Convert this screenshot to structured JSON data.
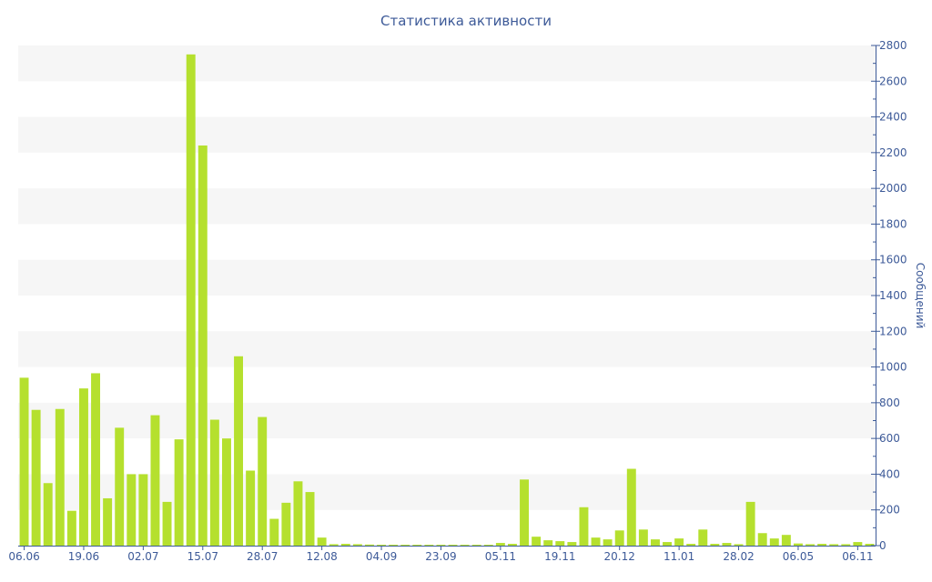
{
  "chart_data": {
    "type": "bar",
    "title": "Статистика активности",
    "ylabel": "Сообщений",
    "xlabel": "",
    "ylim": [
      0,
      2800
    ],
    "y_ticks": [
      0,
      200,
      400,
      600,
      800,
      1000,
      1200,
      1400,
      1600,
      1800,
      2000,
      2200,
      2400,
      2600,
      2800
    ],
    "y_axis_side": "right",
    "grid": "horizontal alternating bands",
    "legend": "none",
    "bar_color": "#b5e02e",
    "axis_color": "#3d5a98",
    "band_color": "#f6f6f6",
    "x_tick_labels": [
      {
        "label": "06.06",
        "index": 0
      },
      {
        "label": "19.06",
        "index": 5
      },
      {
        "label": "02.07",
        "index": 10
      },
      {
        "label": "15.07",
        "index": 15
      },
      {
        "label": "28.07",
        "index": 20
      },
      {
        "label": "12.08",
        "index": 25
      },
      {
        "label": "04.09",
        "index": 30
      },
      {
        "label": "23.09",
        "index": 35
      },
      {
        "label": "05.11",
        "index": 40
      },
      {
        "label": "19.11",
        "index": 45
      },
      {
        "label": "20.12",
        "index": 50
      },
      {
        "label": "11.01",
        "index": 55
      },
      {
        "label": "28.02",
        "index": 60
      },
      {
        "label": "06.05",
        "index": 65
      },
      {
        "label": "06.11",
        "index": 70
      }
    ],
    "values": [
      940,
      760,
      350,
      765,
      195,
      880,
      965,
      265,
      660,
      400,
      400,
      730,
      245,
      595,
      2750,
      2240,
      705,
      600,
      1060,
      420,
      720,
      150,
      240,
      360,
      300,
      45,
      8,
      10,
      8,
      6,
      5,
      5,
      5,
      5,
      5,
      5,
      5,
      5,
      5,
      5,
      15,
      10,
      370,
      50,
      30,
      25,
      20,
      215,
      45,
      35,
      85,
      430,
      90,
      35,
      20,
      40,
      10,
      90,
      10,
      15,
      8,
      245,
      70,
      40,
      60,
      12,
      8,
      10,
      8,
      8,
      20,
      10
    ]
  }
}
